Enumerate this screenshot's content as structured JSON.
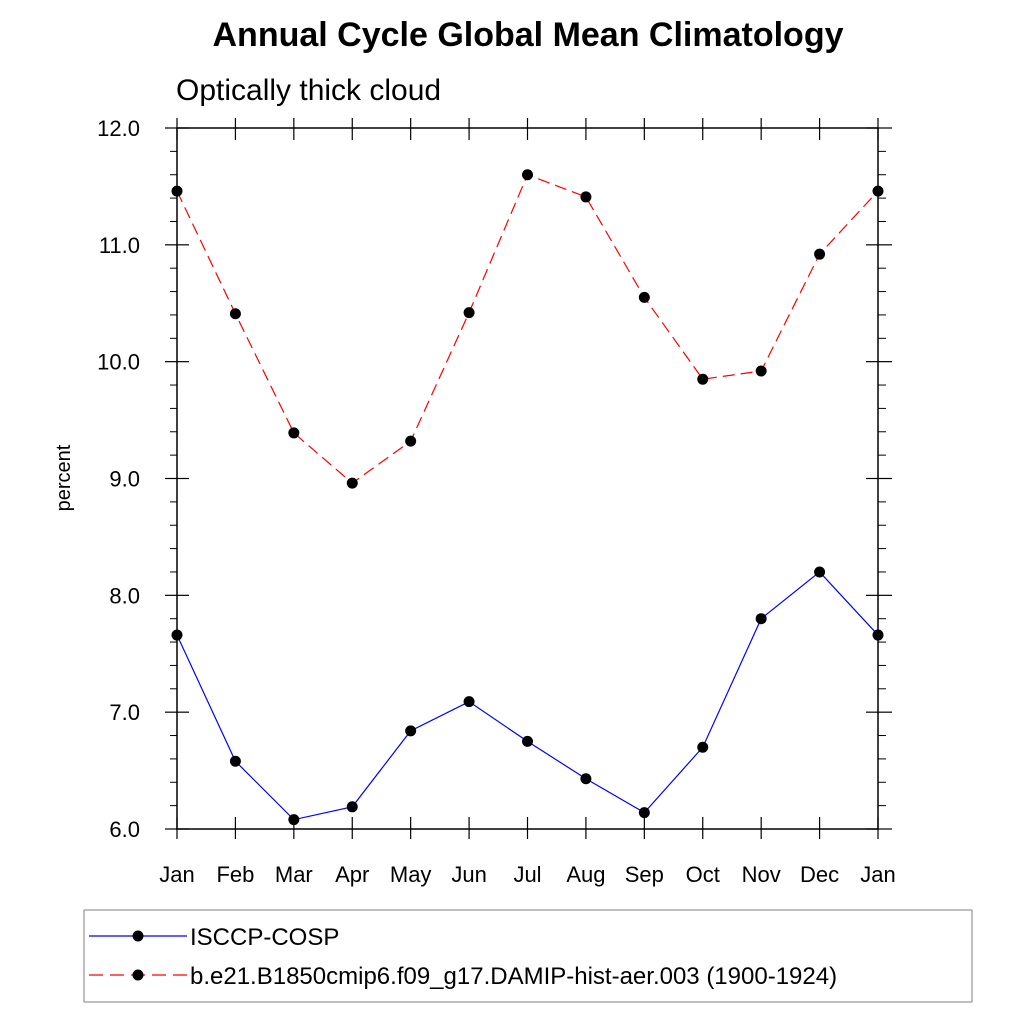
{
  "chart_data": {
    "type": "line",
    "title": "Annual Cycle Global Mean Climatology",
    "subtitle": "Optically thick cloud",
    "xlabel": "",
    "ylabel": "percent",
    "categories": [
      "Jan",
      "Feb",
      "Mar",
      "Apr",
      "May",
      "Jun",
      "Jul",
      "Aug",
      "Sep",
      "Oct",
      "Nov",
      "Dec",
      "Jan"
    ],
    "ylim": [
      6.0,
      12.0
    ],
    "yticks": [
      "6.0",
      "7.0",
      "8.0",
      "9.0",
      "10.0",
      "11.0",
      "12.0"
    ],
    "grid": false,
    "legend_position": "bottom",
    "series": [
      {
        "name": "ISCCP-COSP",
        "color": "#0000ff",
        "line_style": "solid",
        "marker": "circle",
        "values": [
          7.66,
          6.58,
          6.08,
          6.19,
          6.84,
          7.09,
          6.75,
          6.43,
          6.14,
          6.7,
          7.8,
          8.2,
          7.66
        ]
      },
      {
        "name": "b.e21.B1850cmip6.f09_g17.DAMIP-hist-aer.003 (1900-1924)",
        "color": "#ff0000",
        "line_style": "dashed",
        "marker": "circle",
        "values": [
          11.46,
          10.41,
          9.39,
          8.96,
          9.32,
          10.42,
          11.6,
          11.41,
          10.55,
          9.85,
          9.92,
          10.92,
          11.46
        ]
      }
    ]
  }
}
